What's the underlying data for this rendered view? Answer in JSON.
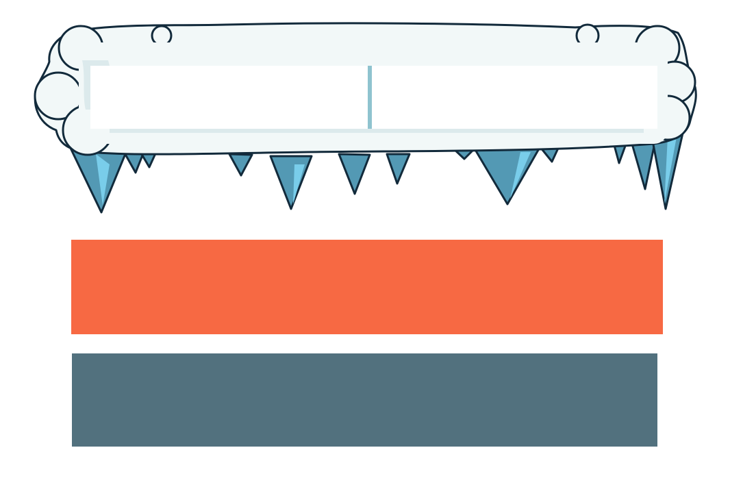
{
  "colors": {
    "snow": "#f2f8f8",
    "snow_outline": "#122a3b",
    "ice_dark": "#5399b4",
    "ice_light": "#79cdea",
    "divider": "#8fc3cf",
    "primary_bar": "#f76943",
    "secondary_bar": "#52717e"
  },
  "scoreboard": {
    "left_value": "",
    "right_value": ""
  },
  "buttons": {
    "primary_label": "",
    "secondary_label": ""
  }
}
